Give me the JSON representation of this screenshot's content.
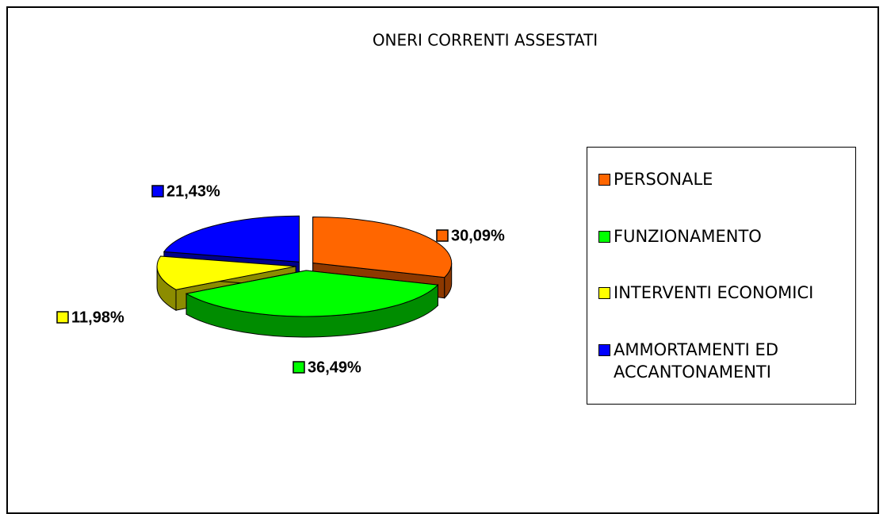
{
  "chart_data": {
    "type": "pie",
    "title": "ONERI CORRENTI ASSESTATI",
    "categories": [
      "PERSONALE",
      "FUNZIONAMENTO",
      "INTERVENTI ECONOMICI",
      "AMMORTAMENTI ED ACCANTONAMENTI"
    ],
    "values": [
      30.09,
      36.49,
      11.98,
      21.43
    ],
    "value_labels": [
      "30,09%",
      "36,49%",
      "11,98%",
      "21,43%"
    ],
    "colors": [
      "#ff6600",
      "#00ff00",
      "#ffff00",
      "#0000ff"
    ],
    "legend": "right"
  }
}
